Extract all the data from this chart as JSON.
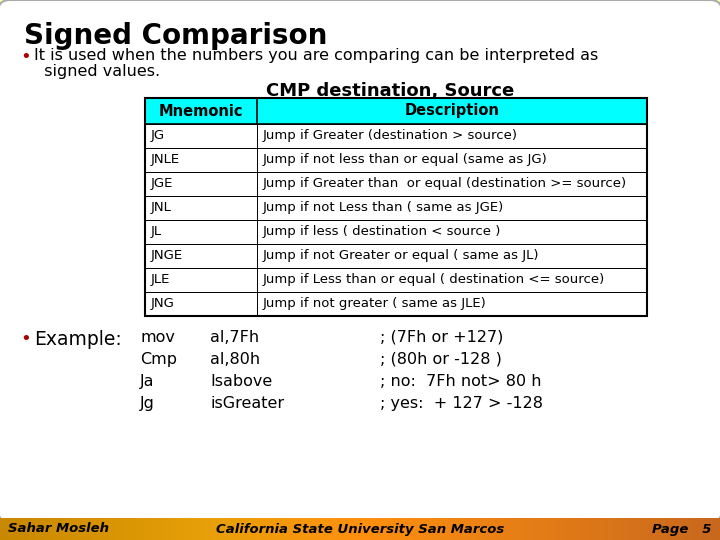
{
  "title": "Signed Comparison",
  "bullet1_line1": "It is used when the numbers you are comparing can be interpreted as",
  "bullet1_line2": "  signed values.",
  "table_title": "CMP destination, Source",
  "header": [
    "Mnemonic",
    "Description"
  ],
  "rows": [
    [
      "JG",
      "Jump if Greater (destination > source)"
    ],
    [
      "JNLE",
      "Jump if not less than or equal (same as JG)"
    ],
    [
      "JGE",
      "Jump if Greater than  or equal (destination >= source)"
    ],
    [
      "JNL",
      "Jump if not Less than ( same as JGE)"
    ],
    [
      "JL",
      "Jump if less ( destination < source )"
    ],
    [
      "JNGE",
      "Jump if not Greater or equal ( same as JL)"
    ],
    [
      "JLE",
      "Jump if Less than or equal ( destination <= source)"
    ],
    [
      "JNG",
      "Jump if not greater ( same as JLE)"
    ]
  ],
  "header_bg": "#00FFFF",
  "header_text_color": "#000000",
  "table_border_color": "#000000",
  "example_label": "Example:",
  "example_lines": [
    [
      "mov",
      "al,7Fh",
      "; (7Fh or +127)"
    ],
    [
      "Cmp",
      "al,80h",
      "; (80h or -128 )"
    ],
    [
      "Ja",
      "Isabove",
      "; no:  7Fh not> 80 h"
    ],
    [
      "Jg",
      "isGreater",
      "; yes:  + 127 > -128"
    ]
  ],
  "footer_left": "Sahar Mosleh",
  "footer_center": "California State University San Marcos",
  "footer_right": "Page   5",
  "bg_color": "#FFFFA0",
  "slide_bg": "#FFFFFF",
  "bullet_color": "#AA0000"
}
